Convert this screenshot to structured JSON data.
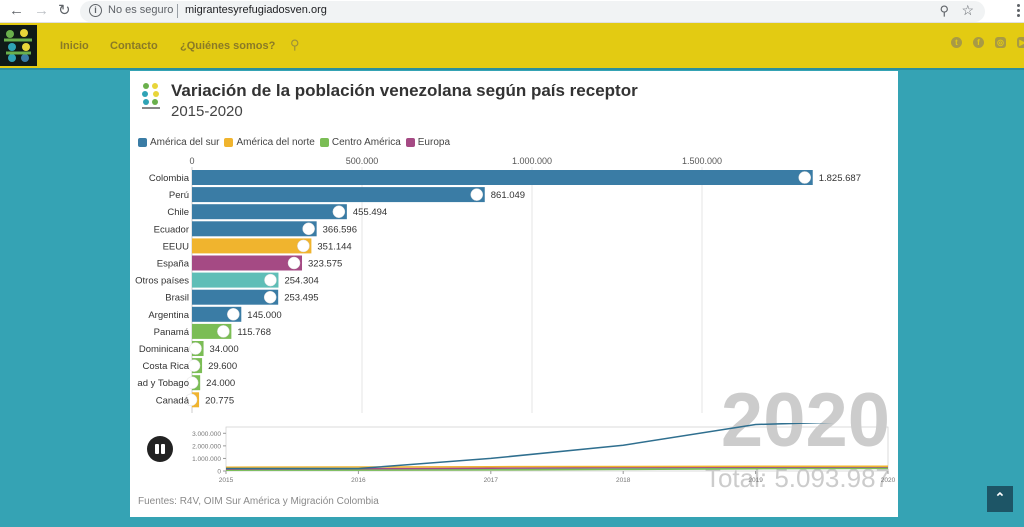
{
  "browser": {
    "back": "←",
    "forward": "→",
    "reload": "↻",
    "security_label": "No es seguro",
    "url": "migrantesyrefugiadosven.org"
  },
  "nav": {
    "links": [
      "Inicio",
      "Contacto",
      "¿Quiénes somos?"
    ],
    "social_icons": [
      "twitter-icon",
      "facebook-icon",
      "instagram-icon",
      "youtube-icon"
    ]
  },
  "card": {
    "title": "Variación de la población venezolana según país receptor",
    "subtitle": "2015-2020",
    "source": "Fuentes: R4V, OIM Sur América y Migración Colombia",
    "year": "2020",
    "total": "Total: 5.093.987"
  },
  "colors": {
    "America del sur": "#3a7ca5",
    "America del norte": "#f0b42e",
    "Centro America": "#7bbd55",
    "Europa": "#a54a84",
    "Otros": "#5fbeb7"
  },
  "chart_data": [
    {
      "type": "bar",
      "title": "Variación de la población venezolana según país receptor",
      "subtitle": "2015-2020",
      "orientation": "horizontal",
      "xlim": [
        0,
        1900000
      ],
      "x_ticks": [
        0,
        500000,
        1000000,
        1500000
      ],
      "x_tick_labels": [
        "0",
        "500.000",
        "1.000.000",
        "1.500.000"
      ],
      "grid": true,
      "legend": {
        "placement": "top-left",
        "entries": [
          {
            "label": "América del sur",
            "color": "#3a7ca5"
          },
          {
            "label": "América del norte",
            "color": "#f0b42e"
          },
          {
            "label": "Centro América",
            "color": "#7bbd55"
          },
          {
            "label": "Europa",
            "color": "#a54a84"
          }
        ]
      },
      "categories": [
        "Colombia",
        "Perú",
        "Chile",
        "Ecuador",
        "EEUU",
        "España",
        "Otros países",
        "Brasil",
        "Argentina",
        "Panamá",
        "Dominicana",
        "Costa Rica",
        "ad y Tobago",
        "Canadá"
      ],
      "values": [
        1825687,
        861049,
        455494,
        366596,
        351144,
        323575,
        254304,
        253495,
        145000,
        115768,
        34000,
        29600,
        24000,
        20775
      ],
      "value_labels": [
        "1.825.687",
        "861.049",
        "455.494",
        "366.596",
        "351.144",
        "323.575",
        "254.304",
        "253.495",
        "145.000",
        "115.768",
        "34.000",
        "29.600",
        "24.000",
        "20.775"
      ],
      "regions": [
        "America del sur",
        "America del sur",
        "America del sur",
        "America del sur",
        "America del norte",
        "Europa",
        "Otros",
        "America del sur",
        "America del sur",
        "Centro America",
        "Centro America",
        "Centro America",
        "Centro America",
        "America del norte"
      ],
      "year_label": "2020",
      "total_label": "Total: 5.093.987"
    },
    {
      "type": "line",
      "title": "",
      "x": [
        2015,
        2016,
        2017,
        2018,
        2019,
        2020
      ],
      "x_tick_labels": [
        "2015",
        "2016",
        "2017",
        "2018",
        "2019",
        "2020"
      ],
      "ylim": [
        0,
        3500000
      ],
      "y_ticks": [
        0,
        1000000,
        2000000,
        3000000
      ],
      "y_tick_labels": [
        "0",
        "1.000.000",
        "2.000.000",
        "3.000.000"
      ],
      "series": [
        {
          "name": "América del sur",
          "color": "#2f6f8f",
          "values": [
            200000,
            200000,
            1000000,
            2050000,
            3700000,
            4000000
          ]
        },
        {
          "name": "América del norte",
          "color": "#f0b42e",
          "values": [
            300000,
            320000,
            340000,
            360000,
            370000,
            372000
          ]
        },
        {
          "name": "Europa",
          "color": "#a54a84",
          "values": [
            150000,
            180000,
            220000,
            280000,
            310000,
            324000
          ]
        },
        {
          "name": "Centro America",
          "color": "#7bbd55",
          "values": [
            60000,
            70000,
            90000,
            130000,
            180000,
            204000
          ]
        },
        {
          "name": "Otros",
          "color": "#5fbeb7",
          "values": [
            80000,
            90000,
            120000,
            180000,
            230000,
            254000
          ]
        }
      ]
    }
  ]
}
